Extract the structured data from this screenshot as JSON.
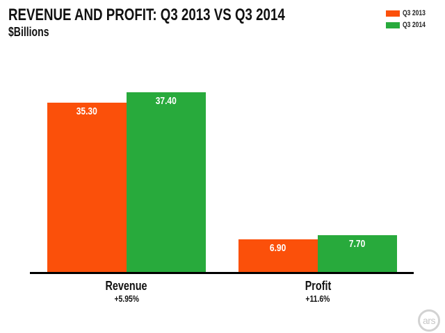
{
  "header": {
    "title": "REVENUE AND PROFIT: Q3 2013 VS Q3 2014",
    "subtitle": "$Billions"
  },
  "legend": {
    "items": [
      {
        "label": "Q3 2013",
        "color": "#FB500A"
      },
      {
        "label": "Q3 2014",
        "color": "#28AA3C"
      }
    ]
  },
  "chart_data": {
    "type": "bar",
    "title": "REVENUE AND PROFIT: Q3 2013 VS Q3 2014",
    "subtitle": "$Billions",
    "unit": "$Billions",
    "categories": [
      "Revenue",
      "Profit"
    ],
    "category_annotations": [
      "+5.95%",
      "+11.6%"
    ],
    "series": [
      {
        "name": "Q3 2013",
        "color": "#FB500A",
        "values": [
          35.3,
          6.9
        ],
        "value_labels": [
          "35.30",
          "6.90"
        ]
      },
      {
        "name": "Q3 2014",
        "color": "#28AA3C",
        "values": [
          37.4,
          7.7
        ],
        "value_labels": [
          "37.40",
          "7.70"
        ]
      }
    ],
    "ylim": [
      0,
      44
    ],
    "grid": false,
    "legend_position": "top-right",
    "value_label_position": "inside-top",
    "value_label_color": "#ffffff"
  },
  "footer": {
    "logo_text": "ars"
  },
  "colors": {
    "background": "#ffffff",
    "baseline": "#000000",
    "text": "#111111",
    "logo_gray": "#c6c6c6"
  }
}
